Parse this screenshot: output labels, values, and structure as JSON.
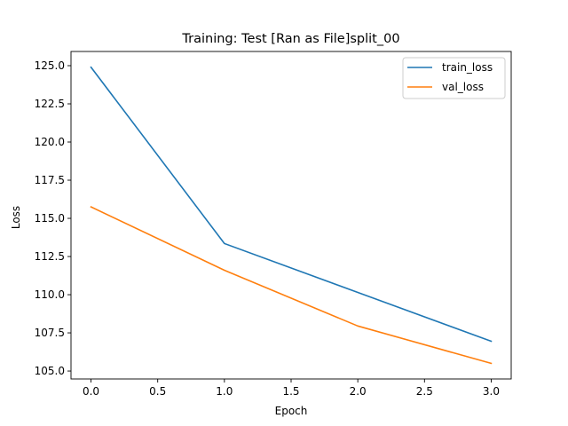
{
  "chart_data": {
    "type": "line",
    "title": "Training: Test [Ran as File]split_00",
    "xlabel": "Epoch",
    "ylabel": "Loss",
    "x": [
      0,
      1,
      2,
      3
    ],
    "series": [
      {
        "name": "train_loss",
        "color": "#1f77b4",
        "values": [
          124.9,
          113.35,
          110.15,
          106.95
        ]
      },
      {
        "name": "val_loss",
        "color": "#ff7f0e",
        "values": [
          115.75,
          111.6,
          107.95,
          105.5
        ]
      }
    ],
    "xlim": [
      -0.15,
      3.15
    ],
    "ylim": [
      104.48,
      125.93
    ],
    "xticks": [
      0.0,
      0.5,
      1.0,
      1.5,
      2.0,
      2.5,
      3.0
    ],
    "xtick_labels": [
      "0.0",
      "0.5",
      "1.0",
      "1.5",
      "2.0",
      "2.5",
      "3.0"
    ],
    "yticks": [
      105.0,
      107.5,
      110.0,
      112.5,
      115.0,
      117.5,
      120.0,
      122.5,
      125.0
    ],
    "ytick_labels": [
      "105.0",
      "107.5",
      "110.0",
      "112.5",
      "115.0",
      "117.5",
      "120.0",
      "122.5",
      "125.0"
    ],
    "grid": false,
    "legend": "top-right"
  }
}
